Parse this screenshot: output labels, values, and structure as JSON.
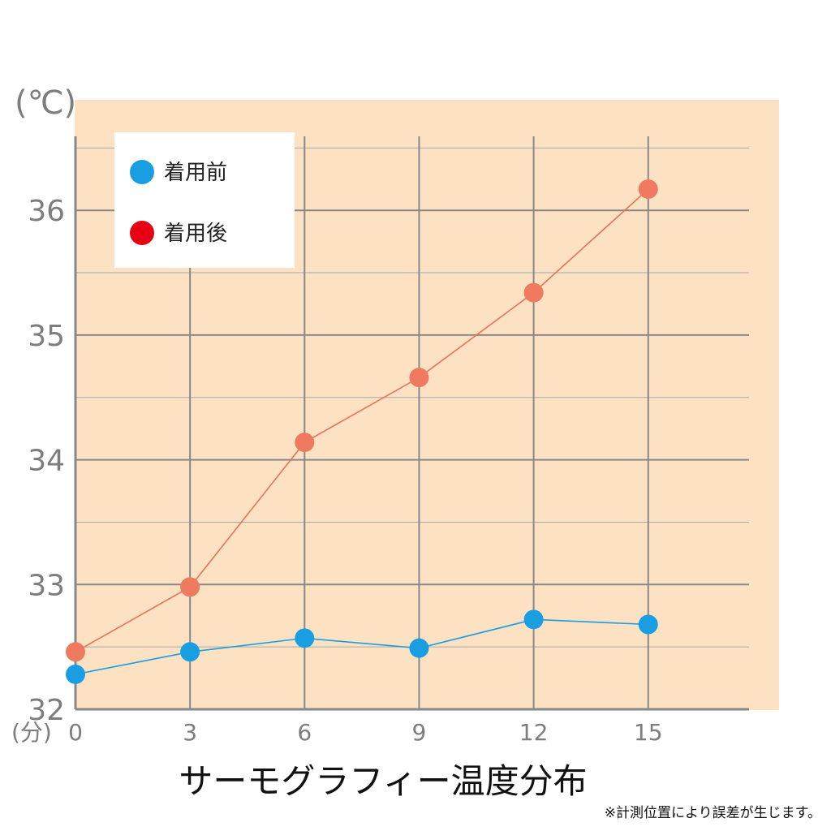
{
  "chart_data": {
    "type": "line",
    "title": "サーモグラフィー温度分布",
    "note": "※計測位置により誤差が生じます。",
    "y_unit": "(℃)",
    "x_unit": "(分)",
    "x": [
      0,
      3,
      6,
      9,
      12,
      15
    ],
    "x_tick_labels": [
      "0",
      "3",
      "6",
      "9",
      "12",
      "15"
    ],
    "y_ticks": [
      32,
      33,
      34,
      35,
      36
    ],
    "y_tick_labels": [
      "32",
      "33",
      "34",
      "35",
      "36"
    ],
    "xlim": [
      0,
      17.7
    ],
    "ylim": [
      32,
      36.6
    ],
    "grid": true,
    "legend_position": "top-left",
    "series": [
      {
        "name": "着用前",
        "color": "#1a9ee2",
        "marker_color": "#1a9ee2",
        "line_color": "#1a9ee2",
        "values": [
          32.28,
          32.46,
          32.57,
          32.49,
          32.72,
          32.68
        ]
      },
      {
        "name": "着用後",
        "color": "#e60012",
        "marker_color": "#ef7a5f",
        "line_color": "#e8735a",
        "values": [
          32.46,
          32.98,
          34.14,
          34.66,
          35.34,
          36.17
        ]
      }
    ],
    "colors": {
      "plot_background": "#fce2c2",
      "grid_major": "#888888",
      "grid_minor": "#a8a8a8"
    }
  }
}
